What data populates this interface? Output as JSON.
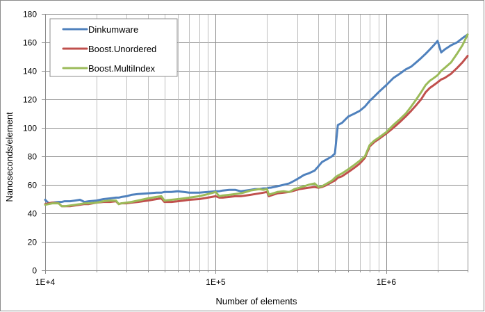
{
  "chart_data": {
    "type": "line",
    "title": "",
    "xlabel": "Number of elements",
    "ylabel": "Nanoseconds/element",
    "x_scale": "log",
    "xlim": [
      10000,
      3000000
    ],
    "ylim": [
      0,
      180
    ],
    "y_ticks": [
      0,
      20,
      40,
      60,
      80,
      100,
      120,
      140,
      160,
      180
    ],
    "x_ticks": [
      10000,
      100000,
      1000000
    ],
    "x_tick_labels": [
      "1E+4",
      "1E+5",
      "1E+6"
    ],
    "grid": true,
    "legend_position": "top-left",
    "x": [
      10000,
      10500,
      11000,
      12000,
      12500,
      13000,
      14000,
      15000,
      16000,
      17000,
      18000,
      20000,
      22000,
      24000,
      26000,
      27000,
      28000,
      30000,
      32000,
      35000,
      40000,
      45000,
      48000,
      50000,
      55000,
      60000,
      65000,
      70000,
      80000,
      90000,
      100000,
      105000,
      110000,
      120000,
      130000,
      140000,
      150000,
      160000,
      170000,
      180000,
      190000,
      200000,
      205000,
      210000,
      230000,
      250000,
      270000,
      290000,
      310000,
      330000,
      350000,
      380000,
      400000,
      420000,
      450000,
      480000,
      500000,
      520000,
      550000,
      600000,
      650000,
      700000,
      750000,
      800000,
      850000,
      900000,
      1000000,
      1100000,
      1200000,
      1300000,
      1400000,
      1500000,
      1600000,
      1700000,
      1800000,
      1900000,
      2000000,
      2100000,
      2200000,
      2400000,
      2600000,
      2800000,
      3000000
    ],
    "series": [
      {
        "name": "Dinkumware",
        "color": "#4f81bd",
        "values": [
          49.5,
          47,
          47.5,
          48,
          48,
          48.5,
          48.5,
          49,
          49.5,
          48,
          48.5,
          49,
          50,
          50.5,
          51,
          51,
          51.5,
          52,
          53,
          53.5,
          54,
          54.5,
          54.5,
          55,
          55,
          55.5,
          55,
          54.5,
          54.5,
          55,
          55.5,
          55.5,
          56,
          56.5,
          56.5,
          55.5,
          56,
          56.5,
          57,
          57,
          57.5,
          57.5,
          58,
          58,
          59,
          60,
          61,
          63,
          65,
          67,
          68,
          70,
          73,
          76,
          78,
          80,
          82,
          102,
          103.5,
          108,
          110,
          112,
          115,
          119,
          122,
          125,
          130,
          135,
          138,
          141,
          143,
          146,
          149,
          152,
          155,
          158,
          161,
          153,
          155,
          158,
          160,
          163,
          165.5
        ]
      },
      {
        "name": "Boost.Unordered",
        "color": "#c0504d",
        "values": [
          46.5,
          47,
          47.5,
          47,
          45,
          45,
          45,
          45.5,
          46,
          46.5,
          46.5,
          47.5,
          48,
          48,
          48.5,
          46.5,
          47,
          47,
          47.5,
          48,
          49,
          50,
          50.5,
          48,
          48,
          48.5,
          49,
          49.5,
          50,
          51,
          52,
          51,
          51,
          51.5,
          52,
          52,
          52.5,
          53,
          53.5,
          54,
          54.5,
          55,
          52,
          52.5,
          54,
          54.5,
          55,
          56,
          57,
          57.5,
          58,
          58.5,
          58,
          58.5,
          60,
          62,
          63,
          65,
          66,
          69,
          72,
          75,
          79,
          87,
          90,
          92,
          96,
          100,
          104,
          108,
          112,
          116,
          120,
          125,
          128,
          130,
          132,
          134,
          135,
          138,
          142,
          146,
          150.5
        ]
      },
      {
        "name": "Boost.MultiIndex",
        "color": "#9bbb59",
        "values": [
          46,
          46.5,
          47,
          47,
          45,
          45,
          45.5,
          46,
          46.5,
          47,
          47,
          47.5,
          48.5,
          49,
          49,
          46.5,
          47,
          47.5,
          48,
          49,
          50.5,
          51.5,
          52,
          49,
          49.5,
          50,
          50.5,
          51,
          52,
          53.5,
          55,
          52,
          52.5,
          53,
          53.5,
          54,
          55,
          56,
          56.5,
          57,
          56.5,
          57,
          53,
          53.5,
          55,
          55.5,
          55,
          57,
          58,
          59,
          60,
          61,
          58.5,
          59,
          61,
          63,
          65,
          66.5,
          68,
          71,
          74,
          77,
          80,
          88,
          91,
          93,
          97,
          102,
          106,
          110,
          115,
          120,
          125,
          130,
          133,
          135,
          137,
          140,
          142,
          146,
          152,
          158,
          165.5
        ]
      }
    ]
  }
}
